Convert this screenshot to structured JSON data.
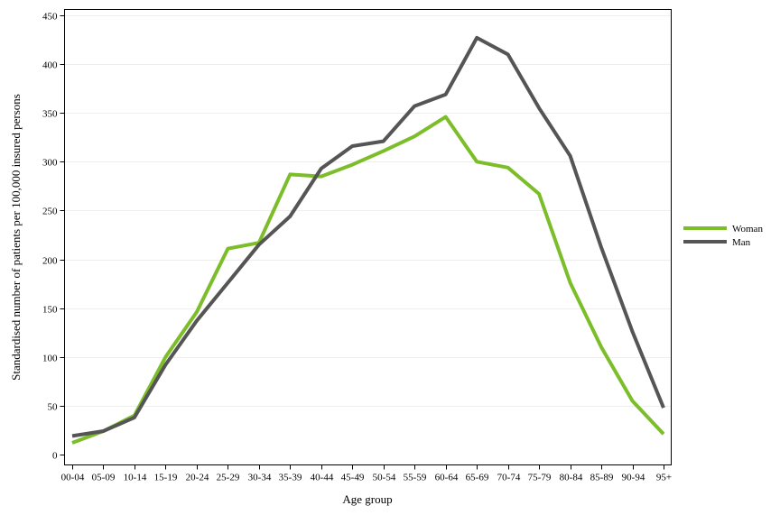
{
  "chart_data": {
    "type": "line",
    "title": "",
    "xlabel": "Age group",
    "ylabel": "Standardised number of patients per 100,000 insured persons",
    "ylim": [
      0,
      450
    ],
    "yticks": [
      0,
      50,
      100,
      150,
      200,
      250,
      300,
      350,
      400,
      450
    ],
    "grid": true,
    "legend_position": "right",
    "categories": [
      "00-04",
      "05-09",
      "10-14",
      "15-19",
      "20-24",
      "25-29",
      "30-34",
      "35-39",
      "40-44",
      "45-49",
      "50-54",
      "55-59",
      "60-64",
      "65-69",
      "70-74",
      "75-79",
      "80-84",
      "85-89",
      "90-94",
      "95+"
    ],
    "series": [
      {
        "name": "Woman",
        "color": "#7cbd2a",
        "values": [
          12,
          24,
          40,
          100,
          146,
          211,
          217,
          287,
          285,
          297,
          311,
          326,
          346,
          300,
          294,
          267,
          176,
          110,
          55,
          21
        ]
      },
      {
        "name": "Man",
        "color": "#555555",
        "values": [
          19,
          24,
          38,
          92,
          137,
          176,
          215,
          244,
          293,
          316,
          321,
          357,
          369,
          427,
          410,
          355,
          306,
          212,
          126,
          48
        ]
      }
    ]
  }
}
